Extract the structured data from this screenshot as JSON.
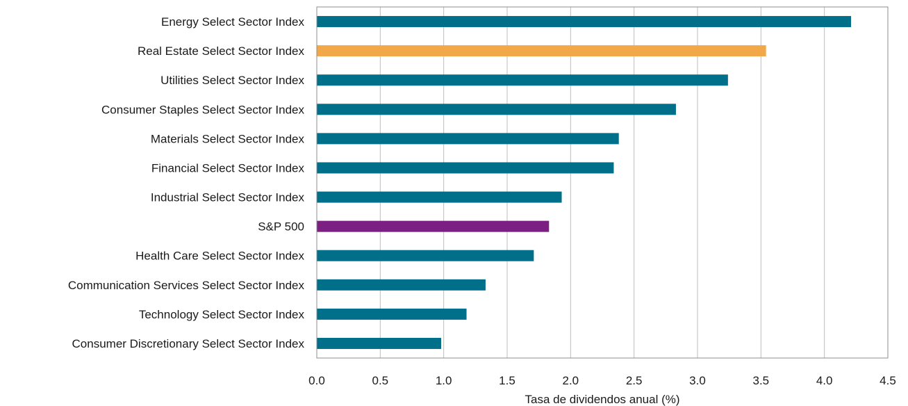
{
  "chart_data": {
    "type": "bar",
    "orientation": "horizontal",
    "categories": [
      "Energy Select Sector Index",
      "Real Estate Select Sector Index",
      "Utilities Select Sector Index",
      "Consumer Staples Select Sector Index",
      "Materials Select Sector Index",
      "Financial Select Sector Index",
      "Industrial Select Sector Index",
      "S&P 500",
      "Health Care Select Sector Index",
      "Communication Services Select Sector Index",
      "Technology Select Sector Index",
      "Consumer Discretionary Select Sector Index"
    ],
    "values": [
      4.21,
      3.54,
      3.24,
      2.83,
      2.38,
      2.34,
      1.93,
      1.83,
      1.71,
      1.33,
      1.18,
      0.98
    ],
    "bar_colors": [
      "#00708a",
      "#f2a848",
      "#00708a",
      "#00708a",
      "#00708a",
      "#00708a",
      "#00708a",
      "#7b1f83",
      "#00708a",
      "#00708a",
      "#00708a",
      "#00708a"
    ],
    "xlabel": "Tasa de dividendos anual (%)",
    "ylabel": "",
    "title": "",
    "xlim": [
      0,
      4.5
    ],
    "xticks": [
      "0.0",
      "0.5",
      "1.0",
      "1.5",
      "2.0",
      "2.5",
      "3.0",
      "3.5",
      "4.0",
      "4.5"
    ],
    "grid": "vertical",
    "legend": "none"
  }
}
